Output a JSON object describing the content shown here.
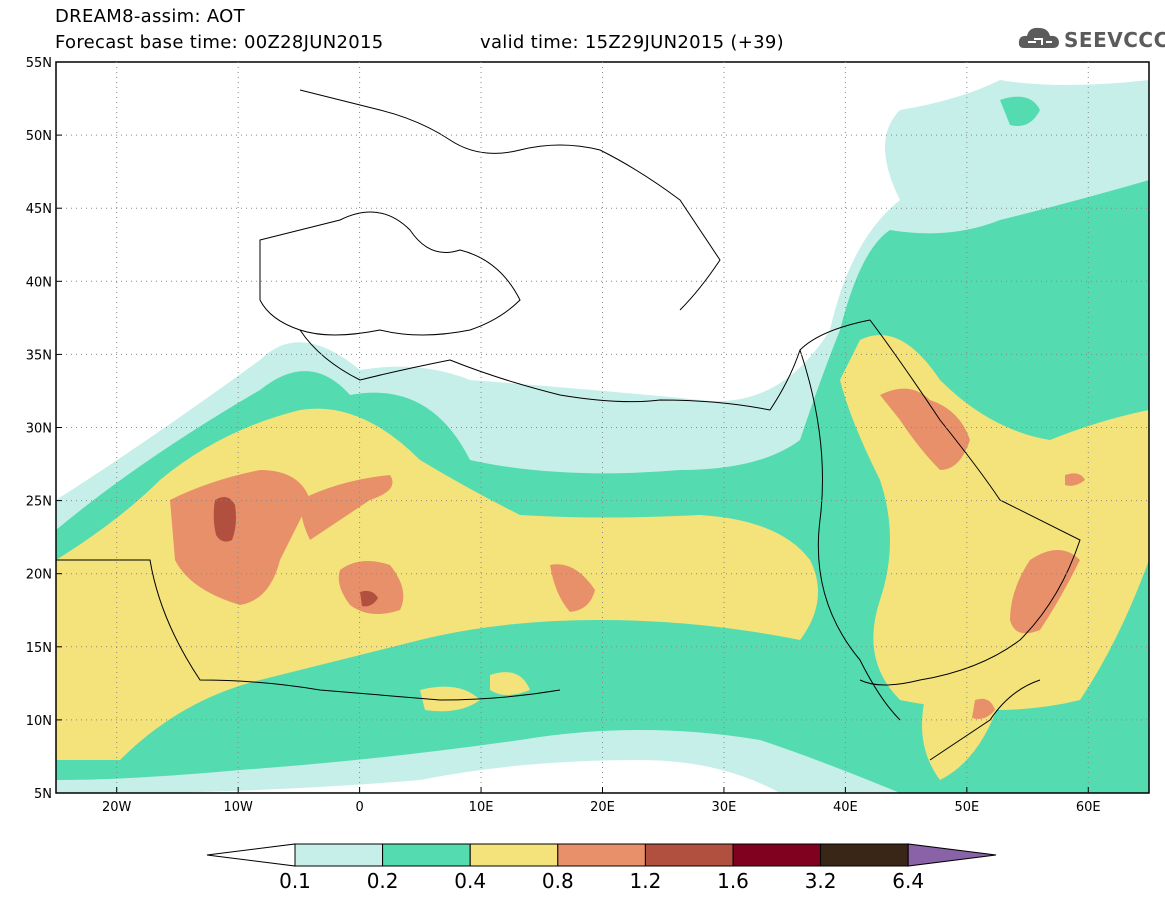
{
  "header": {
    "line1": "DREAM8-assim: AOT",
    "line2": "Forecast base time: 00Z28JUN2015",
    "valid": "valid time: 15Z29JUN2015 (+39)",
    "logo_text": "SEEVCCC"
  },
  "axes": {
    "lat_labels": [
      "55N",
      "50N",
      "45N",
      "40N",
      "35N",
      "30N",
      "25N",
      "20N",
      "15N",
      "10N",
      "5N"
    ],
    "lon_labels": [
      "20W",
      "10W",
      "0",
      "10E",
      "20E",
      "30E",
      "40E",
      "50E",
      "60E"
    ]
  },
  "colorbar": {
    "colors": [
      "#c6efe9",
      "#54dcb0",
      "#f4e37a",
      "#e8906a",
      "#b25040",
      "#800020",
      "#3a2616",
      "#8a62a8"
    ],
    "labels": [
      "0.1",
      "0.2",
      "0.4",
      "0.8",
      "1.2",
      "1.6",
      "3.2",
      "6.4"
    ]
  },
  "palette": {
    "v01": "#c6efe9",
    "v02": "#54dcb0",
    "v04": "#f4e37a",
    "v08": "#e8906a",
    "v12": "#b25040"
  }
}
